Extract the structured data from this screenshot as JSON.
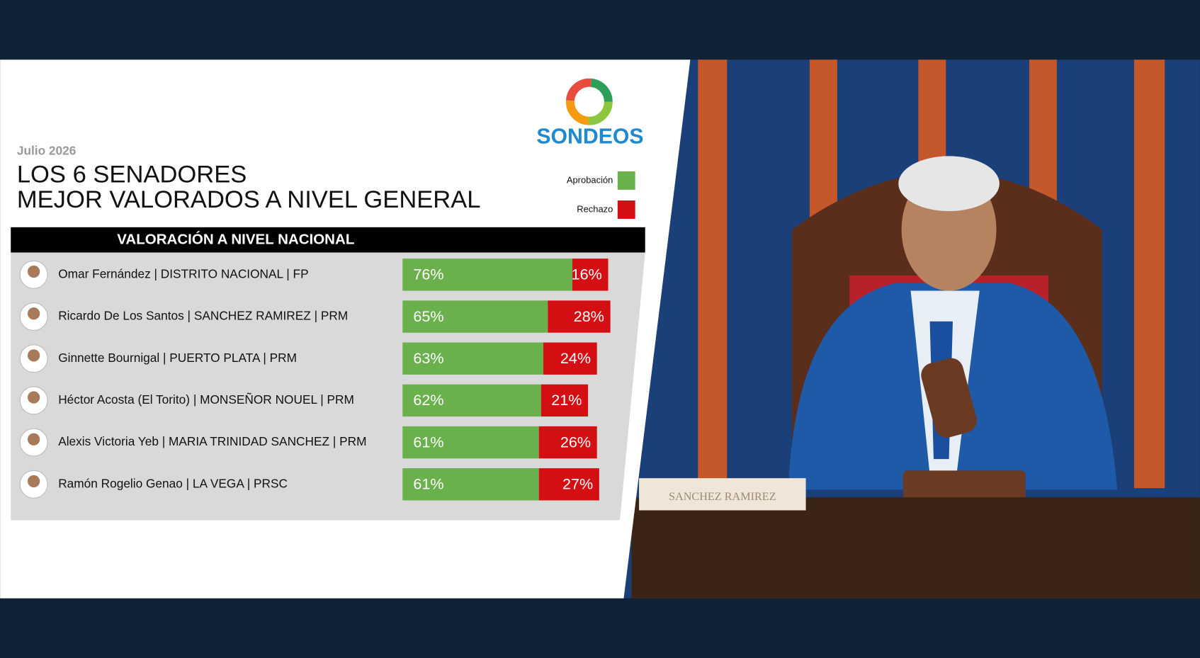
{
  "chart_data": {
    "type": "stacked-bar-horizontal",
    "date_label": "Julio 2026",
    "title_lines": [
      "LOS 6 SENADORES",
      "MEJOR VALORADOS A NIVEL GENERAL"
    ],
    "table_header": "VALORACIÓN  A NIVEL NACIONAL",
    "brand": "SONDEOS",
    "categories": [
      "Omar Fernández | DISTRITO NACIONAL  | FP",
      "Ricardo De Los Santos | SANCHEZ RAMIREZ | PRM",
      "Ginnette Bournigal | PUERTO PLATA  | PRM",
      "Héctor Acosta  (El Torito) | MONSEÑOR NOUEL | PRM",
      "Alexis Victoria Yeb | MARIA TRINIDAD SANCHEZ | PRM",
      "Ramón Rogelio Genao | LA VEGA | PRSC"
    ],
    "series": [
      {
        "name": "Aprobación",
        "color": "#6ab04c",
        "values": [
          76,
          65,
          63,
          62,
          61,
          61
        ],
        "value_labels": [
          "76%",
          "65%",
          "63%",
          "62%",
          "61%",
          "61%"
        ]
      },
      {
        "name": "Rechazo",
        "color": "#d40f14",
        "values": [
          16,
          28,
          24,
          21,
          26,
          27
        ],
        "value_labels": [
          "16%",
          "28%",
          "24%",
          "21%",
          "26%",
          "27%"
        ]
      }
    ],
    "xlim": [
      0,
      100
    ],
    "photo_nameplate": "SANCHEZ RAMIREZ"
  }
}
